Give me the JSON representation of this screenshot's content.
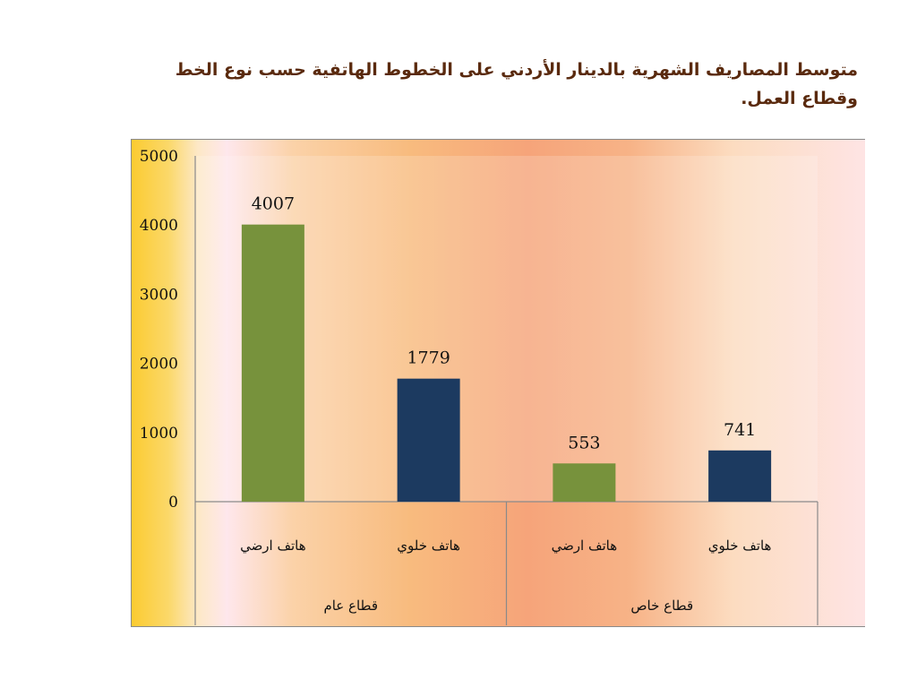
{
  "title": "متوسط المصاريف الشهرية بالدينار الأردني على الخطوط الهاتفية حسب نوع الخط وقطاع العمل.",
  "colors": {
    "landline": "#77923c",
    "mobile": "#1c3a60"
  },
  "chart_data": {
    "type": "bar",
    "title": "",
    "xlabel": "",
    "ylabel": "",
    "ylim": [
      0,
      5000
    ],
    "yticks": [
      "5000",
      "4000",
      "3000",
      "2000",
      "1000",
      "0"
    ],
    "groups": [
      {
        "label": "قطاع عام",
        "bars": [
          {
            "label": "هاتف ارضي",
            "value": 4007,
            "value_label": "4007",
            "series": "landline"
          },
          {
            "label": "هاتف خلوي",
            "value": 1779,
            "value_label": "1779",
            "series": "mobile"
          }
        ]
      },
      {
        "label": "قطاع خاص",
        "bars": [
          {
            "label": "هاتف ارضي",
            "value": 553,
            "value_label": "553",
            "series": "landline"
          },
          {
            "label": "هاتف خلوي",
            "value": 741,
            "value_label": "741",
            "series": "mobile"
          }
        ]
      }
    ],
    "grid": false,
    "legend": "none"
  }
}
